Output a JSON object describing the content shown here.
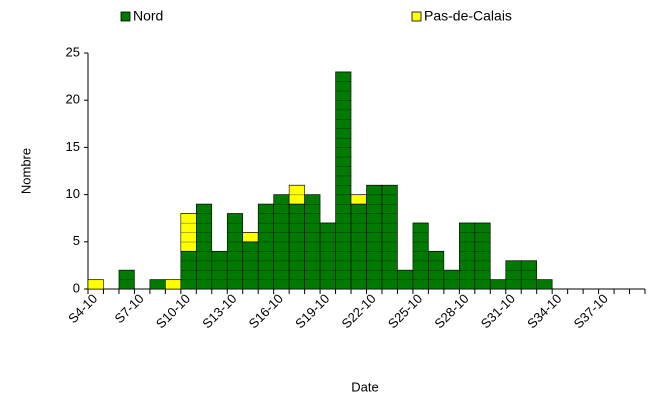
{
  "chart_data": {
    "type": "stacked_bar",
    "xlabel": "Date",
    "ylabel": "Nombre",
    "categories": [
      "S4-10",
      null,
      null,
      "S7-10",
      null,
      null,
      "S10-10",
      null,
      null,
      "S13-10",
      null,
      null,
      "S16-10",
      null,
      null,
      "S19-10",
      null,
      null,
      "S22-10",
      null,
      null,
      "S25-10",
      null,
      null,
      "S28-10",
      null,
      null,
      "S31-10",
      null,
      null,
      "S34-10",
      null,
      null,
      "S37-10",
      null,
      null
    ],
    "series": [
      {
        "name": "Nord",
        "color": "#007a00",
        "values": [
          0,
          0,
          2,
          0,
          1,
          0,
          4,
          9,
          4,
          8,
          5,
          9,
          10,
          9,
          10,
          7,
          23,
          9,
          11,
          11,
          2,
          7,
          4,
          2,
          7,
          7,
          1,
          3,
          3,
          1,
          0,
          0,
          0,
          0,
          0,
          0
        ]
      },
      {
        "name": "Pas-de-Calais",
        "color": "#ffff00",
        "values": [
          1,
          0,
          0,
          0,
          0,
          1,
          4,
          0,
          0,
          0,
          1,
          0,
          0,
          2,
          0,
          0,
          0,
          1,
          0,
          0,
          0,
          0,
          0,
          0,
          0,
          0,
          0,
          0,
          0,
          0,
          0,
          0,
          0,
          0,
          0,
          0
        ]
      }
    ],
    "ylim": [
      0,
      25
    ],
    "yticks": [
      0,
      5,
      10,
      15,
      20,
      25
    ]
  }
}
